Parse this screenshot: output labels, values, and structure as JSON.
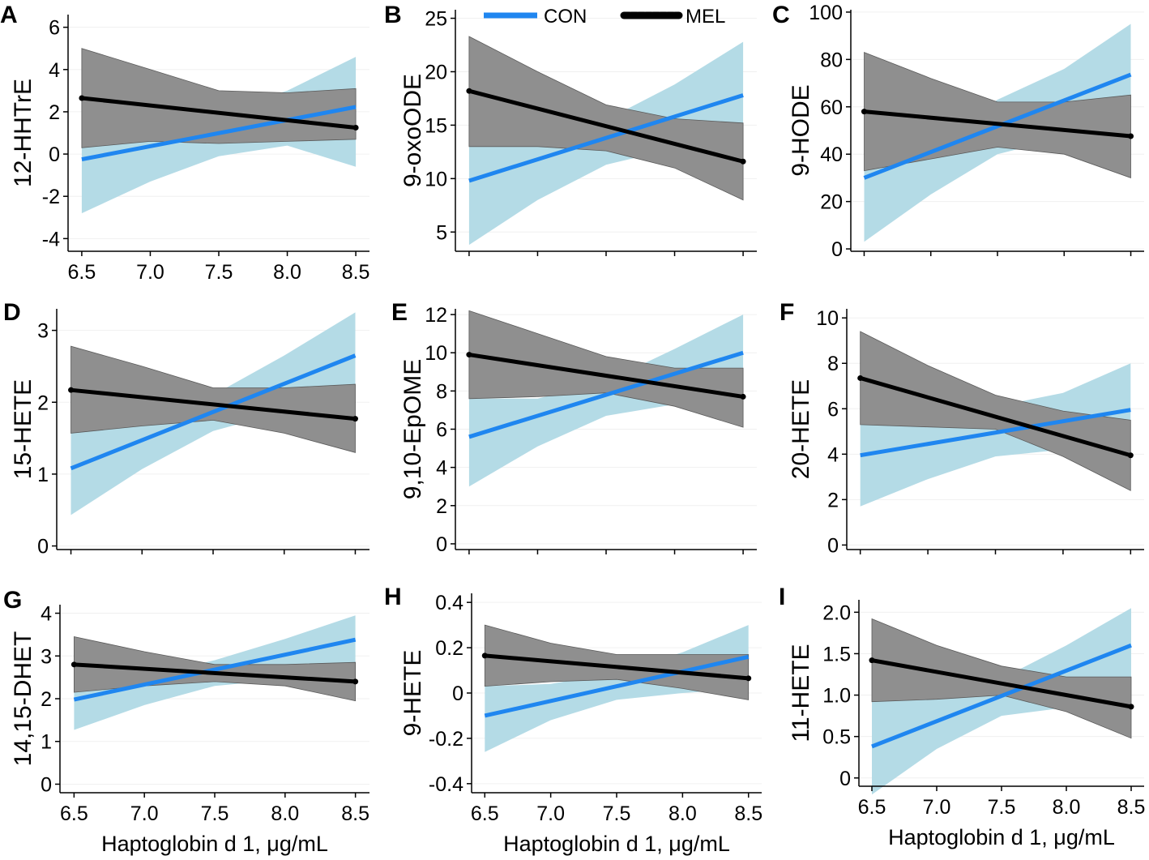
{
  "legend": {
    "items": [
      {
        "label": "CON",
        "color": "#1f86f0"
      },
      {
        "label": "MEL",
        "color": "#000000"
      }
    ]
  },
  "style": {
    "con_line": "#1f86f0",
    "con_band": "#b4dbe6",
    "mel_line": "#000000",
    "mel_band": "#8f8f8f"
  },
  "chart_data": [
    {
      "type": "line",
      "panel": "A",
      "ylabel": "12-HHTrE",
      "xlabel": "",
      "x": [
        6.5,
        7.0,
        7.5,
        8.0,
        8.5
      ],
      "xticks": [
        "6.5",
        "7.0",
        "7.5",
        "8.0",
        "8.5"
      ],
      "ylim": [
        -4.6,
        6.6
      ],
      "yticks": [
        -4,
        -2,
        0,
        2,
        4,
        6
      ],
      "yticklabels": [
        "-4",
        "-2",
        "0",
        "2",
        "4",
        "6"
      ],
      "series": [
        {
          "name": "CON",
          "values": [
            -0.25,
            0.37,
            0.99,
            1.61,
            2.23
          ],
          "lower": [
            -2.8,
            -1.3,
            -0.1,
            0.4,
            -0.6
          ],
          "upper": [
            0.3,
            1.0,
            2.0,
            3.0,
            4.6
          ]
        },
        {
          "name": "MEL",
          "values": [
            2.65,
            2.3,
            1.95,
            1.6,
            1.25
          ],
          "lower": [
            0.3,
            0.6,
            0.5,
            0.6,
            0.7
          ],
          "upper": [
            5.0,
            4.0,
            3.0,
            2.9,
            3.1
          ]
        }
      ]
    },
    {
      "type": "line",
      "panel": "B",
      "ylabel": "9-oxoODE",
      "xlabel": "",
      "x": [
        6.5,
        7.0,
        7.5,
        8.0,
        8.5
      ],
      "xticks": [
        "",
        "",
        "",
        "",
        ""
      ],
      "ylim": [
        3.2,
        25.8
      ],
      "yticks": [
        5,
        10,
        15,
        20,
        25
      ],
      "yticklabels": [
        "5",
        "10",
        "15",
        "20",
        "25"
      ],
      "series": [
        {
          "name": "CON",
          "values": [
            9.8,
            11.8,
            13.8,
            15.8,
            17.8
          ],
          "lower": [
            3.8,
            8.0,
            11.3,
            12.8,
            12.8
          ],
          "upper": [
            13.0,
            13.0,
            15.5,
            18.8,
            22.8
          ]
        },
        {
          "name": "MEL",
          "values": [
            18.2,
            16.55,
            14.9,
            13.25,
            11.6
          ],
          "lower": [
            13.0,
            13.0,
            12.6,
            11.0,
            8.0
          ],
          "upper": [
            23.3,
            20.0,
            16.9,
            15.6,
            15.2
          ]
        }
      ]
    },
    {
      "type": "line",
      "panel": "C",
      "ylabel": "9-HODE",
      "xlabel": "",
      "x": [
        6.5,
        7.0,
        7.5,
        8.0,
        8.5
      ],
      "xticks": [
        "",
        "",
        "",
        "",
        ""
      ],
      "ylim": [
        -1,
        101
      ],
      "yticks": [
        0,
        20,
        40,
        60,
        80,
        100
      ],
      "yticklabels": [
        "0",
        "20",
        "40",
        "60",
        "80",
        "100"
      ],
      "series": [
        {
          "name": "CON",
          "values": [
            30.0,
            40.9,
            51.8,
            62.7,
            73.6
          ],
          "lower": [
            3.0,
            23.0,
            40.0,
            47.0,
            52.0
          ],
          "upper": [
            33.5,
            45.0,
            63.0,
            76.0,
            95.0
          ]
        },
        {
          "name": "MEL",
          "values": [
            58.0,
            55.4,
            52.8,
            50.2,
            47.6
          ],
          "lower": [
            33.0,
            38.0,
            43.0,
            40.0,
            30.0
          ],
          "upper": [
            83.0,
            72.0,
            62.0,
            62.0,
            65.0
          ]
        }
      ]
    },
    {
      "type": "line",
      "panel": "D",
      "ylabel": "15-HETE",
      "xlabel": "",
      "x": [
        6.5,
        7.0,
        7.5,
        8.0,
        8.5
      ],
      "xticks": [
        "",
        "",
        "",
        "",
        ""
      ],
      "ylim": [
        -0.05,
        3.3
      ],
      "yticks": [
        0,
        1,
        2,
        3
      ],
      "yticklabels": [
        "0",
        "1",
        "2",
        "3"
      ],
      "series": [
        {
          "name": "CON",
          "values": [
            1.08,
            1.47,
            1.87,
            2.26,
            2.65
          ],
          "lower": [
            0.43,
            1.07,
            1.6,
            1.87,
            2.05
          ],
          "upper": [
            1.57,
            1.67,
            2.1,
            2.65,
            3.25
          ]
        },
        {
          "name": "MEL",
          "values": [
            2.17,
            2.07,
            1.97,
            1.87,
            1.77
          ],
          "lower": [
            1.57,
            1.67,
            1.75,
            1.57,
            1.3
          ],
          "upper": [
            2.78,
            2.5,
            2.2,
            2.2,
            2.25
          ]
        }
      ]
    },
    {
      "type": "line",
      "panel": "E",
      "ylabel": "9,10-EpOME",
      "xlabel": "",
      "x": [
        6.5,
        7.0,
        7.5,
        8.0,
        8.5
      ],
      "xticks": [
        "",
        "",
        "",
        "",
        ""
      ],
      "ylim": [
        -0.3,
        12.3
      ],
      "yticks": [
        0,
        2,
        4,
        6,
        8,
        10,
        12
      ],
      "yticklabels": [
        "0",
        "2",
        "4",
        "6",
        "8",
        "10",
        "12"
      ],
      "series": [
        {
          "name": "CON",
          "values": [
            5.6,
            6.7,
            7.8,
            8.9,
            10.0
          ],
          "lower": [
            3.0,
            5.1,
            6.7,
            7.3,
            7.3
          ],
          "upper": [
            7.6,
            7.6,
            8.5,
            10.2,
            12.0
          ]
        },
        {
          "name": "MEL",
          "values": [
            9.9,
            9.35,
            8.8,
            8.25,
            7.7
          ],
          "lower": [
            7.6,
            7.7,
            7.9,
            7.2,
            6.1
          ],
          "upper": [
            12.2,
            11.0,
            9.8,
            9.2,
            9.2
          ]
        }
      ]
    },
    {
      "type": "line",
      "panel": "F",
      "ylabel": "20-HETE",
      "xlabel": "",
      "x": [
        6.5,
        7.0,
        7.5,
        8.0,
        8.5
      ],
      "xticks": [
        "",
        "",
        "",
        "",
        ""
      ],
      "ylim": [
        -0.2,
        10.4
      ],
      "yticks": [
        0,
        2,
        4,
        6,
        8,
        10
      ],
      "yticklabels": [
        "0",
        "2",
        "4",
        "6",
        "8",
        "10"
      ],
      "series": [
        {
          "name": "CON",
          "values": [
            3.95,
            4.45,
            4.95,
            5.45,
            5.95
          ],
          "lower": [
            1.7,
            2.9,
            3.9,
            4.2,
            3.9
          ],
          "upper": [
            5.3,
            5.3,
            6.1,
            6.7,
            8.0
          ]
        },
        {
          "name": "MEL",
          "values": [
            7.35,
            6.5,
            5.65,
            4.8,
            3.95
          ],
          "lower": [
            5.3,
            5.2,
            5.1,
            3.9,
            2.4
          ],
          "upper": [
            9.4,
            7.9,
            6.6,
            5.9,
            5.5
          ]
        }
      ]
    },
    {
      "type": "line",
      "panel": "G",
      "ylabel": "14,15-DHET",
      "xlabel": "Haptoglobin d 1, μg/mL",
      "x": [
        6.5,
        7.0,
        7.5,
        8.0,
        8.5
      ],
      "xticks": [
        "6.5",
        "7.0",
        "7.5",
        "8.0",
        "8.5"
      ],
      "ylim": [
        -0.2,
        4.2
      ],
      "yticks": [
        0,
        1,
        2,
        3,
        4
      ],
      "yticklabels": [
        "0",
        "1",
        "2",
        "3",
        "4"
      ],
      "series": [
        {
          "name": "CON",
          "values": [
            1.98,
            2.33,
            2.68,
            3.03,
            3.38
          ],
          "lower": [
            1.27,
            1.85,
            2.3,
            2.45,
            2.4
          ],
          "upper": [
            2.25,
            2.5,
            2.9,
            3.4,
            3.95
          ]
        },
        {
          "name": "MEL",
          "values": [
            2.8,
            2.7,
            2.6,
            2.5,
            2.4
          ],
          "lower": [
            2.15,
            2.3,
            2.4,
            2.3,
            1.95
          ],
          "upper": [
            3.45,
            3.1,
            2.8,
            2.8,
            2.85
          ]
        }
      ]
    },
    {
      "type": "line",
      "panel": "H",
      "ylabel": "9-HETE",
      "xlabel": "Haptoglobin d 1, μg/mL",
      "x": [
        6.5,
        7.0,
        7.5,
        8.0,
        8.5
      ],
      "xticks": [
        "6.5",
        "7.0",
        "7.5",
        "8.0",
        "8.5"
      ],
      "ylim": [
        -0.44,
        0.44
      ],
      "yticks": [
        -0.4,
        -0.2,
        0,
        0.2,
        0.4
      ],
      "yticklabels": [
        "-0.4",
        "-0.2",
        "0",
        "0.2",
        "0.4"
      ],
      "series": [
        {
          "name": "CON",
          "values": [
            -0.1,
            -0.035,
            0.03,
            0.095,
            0.16
          ],
          "lower": [
            -0.26,
            -0.12,
            -0.03,
            0.0,
            0.02
          ],
          "upper": [
            0.03,
            0.04,
            0.09,
            0.18,
            0.3
          ]
        },
        {
          "name": "MEL",
          "values": [
            0.165,
            0.14,
            0.115,
            0.09,
            0.065
          ],
          "lower": [
            0.03,
            0.05,
            0.06,
            0.02,
            -0.03
          ],
          "upper": [
            0.3,
            0.22,
            0.17,
            0.17,
            0.17
          ]
        }
      ]
    },
    {
      "type": "line",
      "panel": "I",
      "ylabel": "11-HETE",
      "xlabel": "Haptoglobin d 1, μg/mL",
      "x": [
        6.5,
        7.0,
        7.5,
        8.0,
        8.5
      ],
      "xticks": [
        "6.5",
        "7.0",
        "7.5",
        "8.0",
        "8.5"
      ],
      "ylim": [
        -0.1,
        2.15
      ],
      "yticks": [
        0,
        0.5,
        1.0,
        1.5,
        2.0
      ],
      "yticklabels": [
        "0",
        "0.5",
        "1.0",
        "1.5",
        "2.0"
      ],
      "series": [
        {
          "name": "CON",
          "values": [
            0.38,
            0.69,
            0.99,
            1.3,
            1.6
          ],
          "lower": [
            -0.2,
            0.35,
            0.75,
            0.85,
            0.85
          ],
          "upper": [
            0.92,
            0.95,
            1.2,
            1.6,
            2.05
          ]
        },
        {
          "name": "MEL",
          "values": [
            1.42,
            1.28,
            1.14,
            1.0,
            0.86
          ],
          "lower": [
            0.92,
            0.95,
            1.0,
            0.8,
            0.48
          ],
          "upper": [
            1.92,
            1.6,
            1.35,
            1.22,
            1.22
          ]
        }
      ]
    }
  ]
}
